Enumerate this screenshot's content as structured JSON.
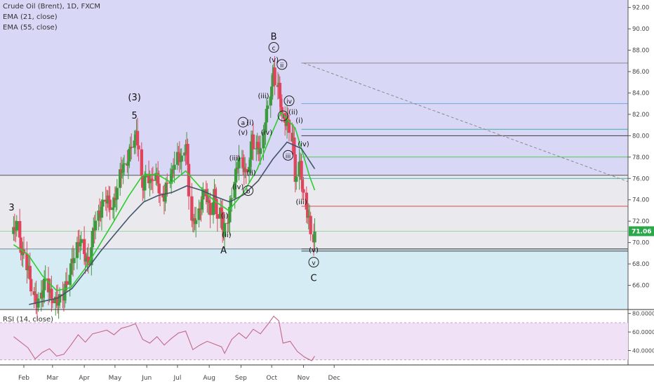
{
  "header": {
    "symbol_line": "Crude Oil (Brent), 1D, FXCM",
    "ema21_label": "EMA (21, close)",
    "ema55_label": "EMA (55, close)",
    "rsi_label": "RSI (14, close)"
  },
  "colors": {
    "zone_upper": "#d9d7f6",
    "zone_middle": "#e9e9ee",
    "zone_lower": "#d6ecf4",
    "rsi_band": "#f1e1f7",
    "candle_up": "#3d9a3f",
    "candle_down": "#e0455d",
    "ema21": "#2fcc2f",
    "ema55": "#44546a",
    "rsi_line": "#bf6a86",
    "price_tag": "#2aa84a"
  },
  "last_price": "71.06",
  "chart_data": [
    {
      "type": "candlestick",
      "title": "Crude Oil (Brent), 1D, FXCM",
      "x_tick_labels": [
        "Feb",
        "Mar",
        "Apr",
        "May",
        "Jun",
        "Jul",
        "Aug",
        "Sep",
        "Oct",
        "Nov",
        "Dec"
      ],
      "y_tick_labels": [
        "66.00",
        "68.00",
        "70.00",
        "72.00",
        "74.00",
        "76.00",
        "78.00",
        "80.00",
        "82.00",
        "84.00",
        "86.00",
        "88.00",
        "90.00",
        "92.00"
      ],
      "ylim": [
        63.8,
        92.7
      ],
      "price_path": [
        [
          "Jan 22",
          70.8
        ],
        [
          "Jan 25",
          71.5
        ],
        [
          "Jan 29",
          69.4
        ],
        [
          "Feb 2",
          69.0
        ],
        [
          "Feb 6",
          67.3
        ],
        [
          "Feb 9",
          64.8
        ],
        [
          "Feb 14",
          64.3
        ],
        [
          "Feb 19",
          65.6
        ],
        [
          "Feb 23",
          66.9
        ],
        [
          "Feb 26",
          65.0
        ],
        [
          "Mar 2",
          64.5
        ],
        [
          "Mar 7",
          64.9
        ],
        [
          "Mar 12",
          65.0
        ],
        [
          "Mar 16",
          66.2
        ],
        [
          "Mar 20",
          68.2
        ],
        [
          "Mar 23",
          69.6
        ],
        [
          "Mar 27",
          70.2
        ],
        [
          "Apr 3",
          68.1
        ],
        [
          "Apr 6",
          68.4
        ],
        [
          "Apr 9",
          71.0
        ],
        [
          "Apr 12",
          72.2
        ],
        [
          "Apr 17",
          72.5
        ],
        [
          "Apr 20",
          73.8
        ],
        [
          "Apr 24",
          74.3
        ],
        [
          "Apr 27",
          73.5
        ],
        [
          "May 1",
          73.8
        ],
        [
          "May 4",
          75.2
        ],
        [
          "May 8",
          77.0
        ],
        [
          "May 11",
          77.5
        ],
        [
          "May 14",
          78.1
        ],
        [
          "May 17",
          79.2
        ],
        [
          "May 21",
          79.3
        ],
        [
          "May 22",
          80.3
        ],
        [
          "May 24",
          78.5
        ],
        [
          "May 25",
          76.5
        ],
        [
          "May 29",
          75.5
        ],
        [
          "Jun 1",
          76.8
        ],
        [
          "Jun 5",
          75.2
        ],
        [
          "Jun 8",
          76.4
        ],
        [
          "Jun 12",
          76.0
        ],
        [
          "Jun 15",
          73.8
        ],
        [
          "Jun 19",
          74.6
        ],
        [
          "Jun 22",
          75.5
        ],
        [
          "Jun 26",
          76.3
        ],
        [
          "Jun 29",
          78.7
        ],
        [
          "Jul 3",
          78.2
        ],
        [
          "Jul 6",
          77.3
        ],
        [
          "Jul 10",
          78.9
        ],
        [
          "Jul 12",
          74.4
        ],
        [
          "Jul 16",
          72.0
        ],
        [
          "Jul 19",
          72.6
        ],
        [
          "Jul 23",
          72.9
        ],
        [
          "Jul 26",
          74.2
        ],
        [
          "Jul 30",
          74.2
        ],
        [
          "Aug 2",
          73.2
        ],
        [
          "Aug 6",
          74.8
        ],
        [
          "Aug 9",
          72.1
        ],
        [
          "Aug 13",
          72.6
        ],
        [
          "Aug 15",
          70.4
        ],
        [
          "Aug 16",
          71.5
        ],
        [
          "Aug 20",
          72.6
        ],
        [
          "Aug 23",
          74.6
        ],
        [
          "Aug 27",
          76.1
        ],
        [
          "Aug 30",
          77.7
        ],
        [
          "Sep 4",
          77.3
        ],
        [
          "Sep 6",
          76.5
        ],
        [
          "Sep 10",
          78.0
        ],
        [
          "Sep 12",
          79.7
        ],
        [
          "Sep 14",
          78.1
        ],
        [
          "Sep 18",
          79.0
        ],
        [
          "Sep 21",
          78.8
        ],
        [
          "Sep 25",
          81.7
        ],
        [
          "Sep 28",
          82.8
        ],
        [
          "Oct 2",
          84.9
        ],
        [
          "Oct 3",
          86.3
        ],
        [
          "Oct 5",
          84.2
        ],
        [
          "Oct 8",
          84.8
        ],
        [
          "Oct 10",
          83.3
        ],
        [
          "Oct 12",
          80.4
        ],
        [
          "Oct 16",
          81.4
        ],
        [
          "Oct 18",
          80.0
        ],
        [
          "Oct 22",
          79.8
        ],
        [
          "Oct 24",
          76.2
        ],
        [
          "Oct 26",
          77.6
        ],
        [
          "Oct 29",
          77.4
        ],
        [
          "Oct 31",
          75.0
        ],
        [
          "Nov 2",
          72.8
        ],
        [
          "Nov 5",
          72.6
        ],
        [
          "Nov 7",
          72.1
        ],
        [
          "Nov 9",
          70.2
        ],
        [
          "Nov 12",
          71.06
        ]
      ],
      "series": [
        {
          "name": "EMA (21, close)",
          "path": [
            [
              "Jan 22",
              69.8
            ],
            [
              "Feb 5",
              68.9
            ],
            [
              "Feb 19",
              66.9
            ],
            [
              "Mar 5",
              65.5
            ],
            [
              "Mar 19",
              65.8
            ],
            [
              "Apr 2",
              67.6
            ],
            [
              "Apr 16",
              69.8
            ],
            [
              "Apr 30",
              72.0
            ],
            [
              "May 14",
              74.3
            ],
            [
              "May 28",
              76.3
            ],
            [
              "Jun 11",
              76.4
            ],
            [
              "Jun 25",
              75.6
            ],
            [
              "Jul 9",
              76.7
            ],
            [
              "Jul 23",
              75.2
            ],
            [
              "Aug 6",
              73.9
            ],
            [
              "Aug 20",
              73.0
            ],
            [
              "Sep 3",
              74.6
            ],
            [
              "Sep 17",
              76.9
            ],
            [
              "Oct 1",
              80.2
            ],
            [
              "Oct 10",
              82.2
            ],
            [
              "Oct 24",
              80.7
            ],
            [
              "Nov 7",
              76.2
            ],
            [
              "Nov 12",
              74.9
            ]
          ]
        },
        {
          "name": "EMA (55, close)",
          "path": [
            [
              "Feb 6",
              64.2
            ],
            [
              "Feb 20",
              64.5
            ],
            [
              "Mar 6",
              64.8
            ],
            [
              "Mar 20",
              65.7
            ],
            [
              "Apr 3",
              67.4
            ],
            [
              "Apr 17",
              69.2
            ],
            [
              "May 1",
              70.8
            ],
            [
              "May 15",
              72.4
            ],
            [
              "May 29",
              73.8
            ],
            [
              "Jun 12",
              74.4
            ],
            [
              "Jun 26",
              74.7
            ],
            [
              "Jul 10",
              75.3
            ],
            [
              "Jul 24",
              74.9
            ],
            [
              "Aug 7",
              74.3
            ],
            [
              "Aug 21",
              73.8
            ],
            [
              "Sep 4",
              74.5
            ],
            [
              "Sep 18",
              75.8
            ],
            [
              "Oct 2",
              77.8
            ],
            [
              "Oct 16",
              79.4
            ],
            [
              "Oct 30",
              78.8
            ],
            [
              "Nov 12",
              76.9
            ]
          ]
        }
      ],
      "zones": [
        {
          "from": 76.3,
          "to": 92.7,
          "color": "#d9d7f6"
        },
        {
          "from": 69.4,
          "to": 76.3,
          "color": "#e9e9ee"
        },
        {
          "from": 63.8,
          "to": 69.4,
          "color": "#d6ecf4"
        }
      ],
      "annotations": [
        {
          "text": "3",
          "x": "Jan 20",
          "y": 73.0
        },
        {
          "text": "(3)",
          "x": "May 20",
          "y": 83.3
        },
        {
          "text": "5",
          "x": "May 20",
          "y": 81.6
        },
        {
          "text": "A",
          "x": "Aug 15",
          "y": 69.0
        },
        {
          "text": "(i)",
          "x": "Aug 16",
          "y": 72.3
        },
        {
          "text": "(ii)",
          "x": "Aug 18",
          "y": 70.5
        },
        {
          "text": "(iii)",
          "x": "Aug 26",
          "y": 77.7
        },
        {
          "text": "(iv)",
          "x": "Aug 29",
          "y": 75.0
        },
        {
          "text": "a",
          "circled": true,
          "x": "Sep 3",
          "y": 81.0
        },
        {
          "text": "(v)",
          "x": "Sep 3",
          "y": 80.1
        },
        {
          "text": "b",
          "circled": true,
          "x": "Sep 8",
          "y": 74.6
        },
        {
          "text": "(ii)",
          "x": "Sep 11",
          "y": 76.3
        },
        {
          "text": "(i)",
          "x": "Sep 10",
          "y": 81.0
        },
        {
          "text": "(iv)",
          "x": "Sep 26",
          "y": 80.1
        },
        {
          "text": "(iii)",
          "x": "Sep 23",
          "y": 83.5
        },
        {
          "text": "B",
          "x": "Oct 3",
          "y": 89.0
        },
        {
          "text": "c",
          "circled": true,
          "x": "Oct 3",
          "y": 88.0
        },
        {
          "text": "(v)",
          "x": "Oct 3",
          "y": 86.9
        },
        {
          "text": "ii",
          "circled": true,
          "x": "Oct 11",
          "y": 86.4
        },
        {
          "text": "iv",
          "circled": true,
          "x": "Oct 18",
          "y": 83.0
        },
        {
          "text": "(ii)",
          "x": "Oct 22",
          "y": 82.0
        },
        {
          "text": "i",
          "circled": true,
          "x": "Oct 12",
          "y": 81.6
        },
        {
          "text": "(i)",
          "x": "Oct 28",
          "y": 81.2
        },
        {
          "text": "iii",
          "circled": true,
          "x": "Oct 17",
          "y": 77.9
        },
        {
          "text": "(iv)",
          "x": "Nov 1",
          "y": 79.0
        },
        {
          "text": "(iii)",
          "x": "Oct 30",
          "y": 73.6
        },
        {
          "text": "(v)",
          "x": "Nov 11",
          "y": 69.1
        },
        {
          "text": "v",
          "circled": true,
          "x": "Nov 11",
          "y": 67.9
        },
        {
          "text": "C",
          "x": "Nov 11",
          "y": 66.4
        }
      ],
      "levels": [
        {
          "from": "Oct 30",
          "to": "Dec 15",
          "value": 86.8,
          "color": "#8a8a8a"
        },
        {
          "from": "Oct 30",
          "to": "Dec 15",
          "value": 83.0,
          "color": "#6aa8e0"
        },
        {
          "from": "Oct 30",
          "to": "Dec 15",
          "value": 80.6,
          "color": "#3fb0a6"
        },
        {
          "from": "Oct 30",
          "to": "Dec 15",
          "value": 80.0,
          "color": "#3d3d3d"
        },
        {
          "from": "Oct 30",
          "to": "Dec 15",
          "value": 78.0,
          "color": "#4dcc4d"
        },
        {
          "from": "Oct 30",
          "to": "Dec 15",
          "value": 76.0,
          "color": "#3fb0a6"
        },
        {
          "from": "Oct 30",
          "to": "Dec 15",
          "value": 73.4,
          "color": "#e0455d"
        },
        {
          "from": "Oct 30",
          "to": "Dec 15",
          "value": 69.4,
          "color": "#3d3d3d"
        },
        {
          "from": "Oct 30",
          "to": "Dec 15",
          "value": 69.2,
          "color": "#3d3d3d"
        }
      ],
      "trendline": {
        "from": [
          "Nov 1",
          86.8
        ],
        "to": [
          "Dec 15",
          75.7
        ],
        "dashed": true
      },
      "last_value": 71.06
    },
    {
      "type": "line",
      "title": "RSI (14, close)",
      "y_tick_labels": [
        "40.0000",
        "60.0000",
        "80.0000"
      ],
      "ylim": [
        26,
        82
      ],
      "band": [
        30,
        70
      ],
      "series": [
        {
          "name": "RSI (14, close)",
          "path": [
            [
              "Jan 22",
              55
            ],
            [
              "Jan 29",
              49
            ],
            [
              "Feb 5",
              43
            ],
            [
              "Feb 12",
              31
            ],
            [
              "Feb 19",
              38
            ],
            [
              "Feb 26",
              42
            ],
            [
              "Mar 5",
              34
            ],
            [
              "Mar 12",
              36
            ],
            [
              "Mar 19",
              46
            ],
            [
              "Mar 26",
              57
            ],
            [
              "Apr 2",
              49
            ],
            [
              "Apr 9",
              58
            ],
            [
              "Apr 16",
              60
            ],
            [
              "Apr 23",
              62
            ],
            [
              "Apr 30",
              57
            ],
            [
              "May 7",
              64
            ],
            [
              "May 14",
              66
            ],
            [
              "May 21",
              69
            ],
            [
              "May 28",
              52
            ],
            [
              "Jun 4",
              48
            ],
            [
              "Jun 11",
              55
            ],
            [
              "Jun 18",
              46
            ],
            [
              "Jun 25",
              53
            ],
            [
              "Jul 2",
              59
            ],
            [
              "Jul 9",
              61
            ],
            [
              "Jul 16",
              41
            ],
            [
              "Jul 23",
              46
            ],
            [
              "Jul 30",
              50
            ],
            [
              "Aug 6",
              47
            ],
            [
              "Aug 13",
              44
            ],
            [
              "Aug 16",
              37
            ],
            [
              "Aug 23",
              52
            ],
            [
              "Aug 30",
              59
            ],
            [
              "Sep 6",
              53
            ],
            [
              "Sep 13",
              63
            ],
            [
              "Sep 20",
              58
            ],
            [
              "Sep 27",
              68
            ],
            [
              "Oct 3",
              77
            ],
            [
              "Oct 8",
              72
            ],
            [
              "Oct 12",
              48
            ],
            [
              "Oct 19",
              50
            ],
            [
              "Oct 26",
              39
            ],
            [
              "Nov 2",
              33
            ],
            [
              "Nov 9",
              29
            ],
            [
              "Nov 12",
              34
            ]
          ]
        }
      ]
    }
  ]
}
